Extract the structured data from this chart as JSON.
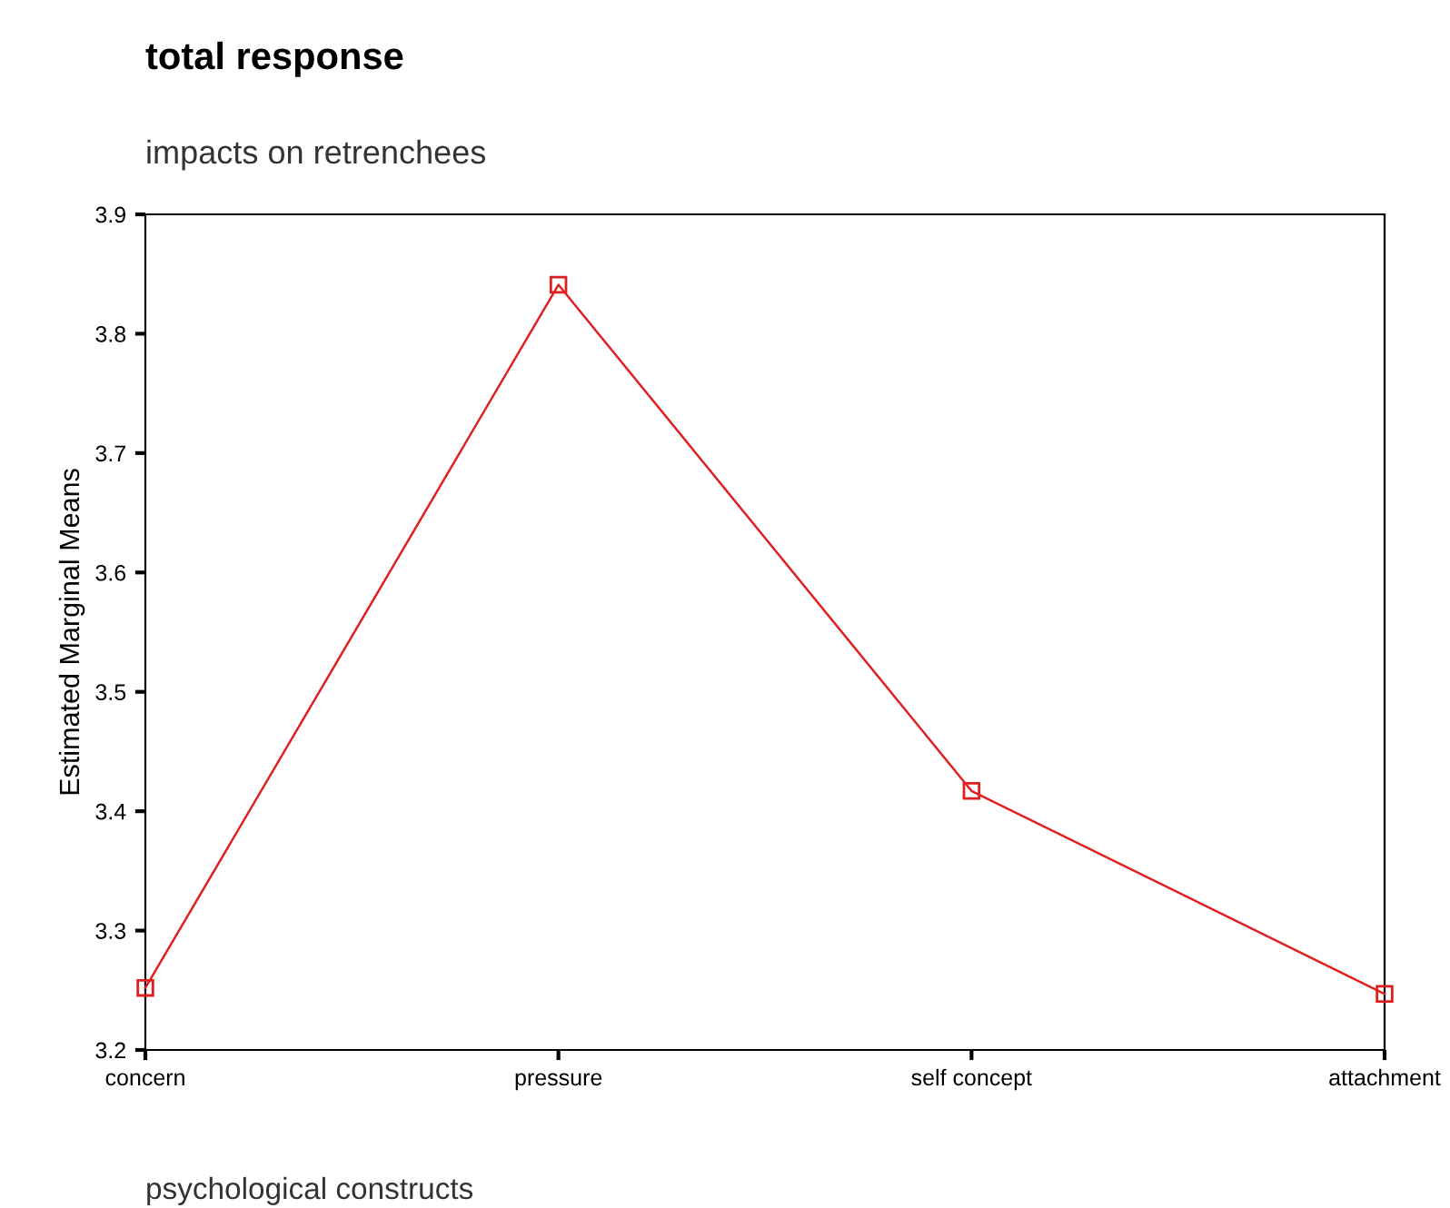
{
  "chart_data": {
    "type": "line",
    "title": "total response",
    "subtitle": "impacts on retrenchees",
    "xlabel": "psychological constructs",
    "ylabel": "Estimated Marginal Means",
    "categories": [
      "concern",
      "pressure",
      "self concept",
      "attachment"
    ],
    "series": [
      {
        "color": "#e02020",
        "values": [
          3.252,
          3.841,
          3.417,
          3.247
        ]
      }
    ],
    "ylim": [
      3.2,
      3.9
    ],
    "yticks": [
      3.2,
      3.3,
      3.4,
      3.5,
      3.6,
      3.7,
      3.8,
      3.9
    ],
    "marker": "square",
    "line_style": "solid",
    "grid": false,
    "legend": false
  }
}
